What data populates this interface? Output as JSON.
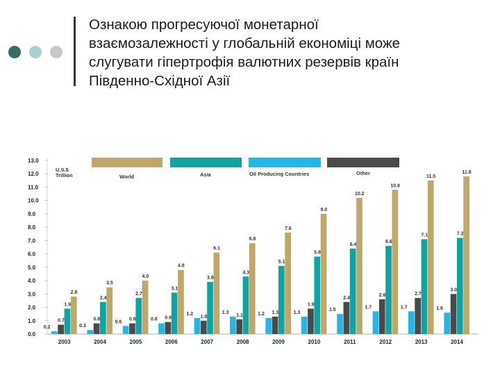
{
  "colors": {
    "dot_dark": "#3b6b67",
    "dot_light": "#a9cfd0",
    "dot_gray": "#c8c8c8",
    "world": "#bfa76c",
    "asia": "#10a3a2",
    "oil": "#27b6e3",
    "other": "#4a4a4d"
  },
  "slide": {
    "title_lines": [
      "Ознакою прогресуючої монетарної",
      "взаємозалежності у глобальній економіці може",
      "слугувати гіпертрофія валютних резервів країн",
      "Південно-Східної Азії"
    ]
  },
  "chart_data": {
    "type": "bar",
    "unit_label": [
      "U.S.$",
      "Trillion"
    ],
    "categories": [
      "2003",
      "2004",
      "2005",
      "2006",
      "2007",
      "2008",
      "2009",
      "2010",
      "2011",
      "2012",
      "2013",
      "2014"
    ],
    "series": [
      {
        "name": "Oil Producing Countries",
        "values": [
          0.2,
          0.3,
          0.6,
          0.8,
          1.2,
          1.3,
          1.2,
          1.3,
          1.5,
          1.7,
          1.7,
          1.6
        ]
      },
      {
        "name": "Other",
        "values": [
          0.7,
          0.8,
          0.8,
          0.9,
          1.0,
          1.1,
          1.3,
          1.9,
          2.4,
          2.6,
          2.7,
          3.0
        ]
      },
      {
        "name": "Asia",
        "values": [
          1.9,
          2.4,
          2.7,
          3.1,
          3.9,
          4.3,
          5.1,
          5.8,
          6.4,
          6.6,
          7.1,
          7.2
        ]
      },
      {
        "name": "World",
        "values": [
          2.8,
          3.5,
          4.0,
          4.8,
          6.1,
          6.8,
          7.6,
          9.0,
          10.2,
          10.8,
          11.5,
          11.8
        ]
      }
    ],
    "data_labels": [
      [
        "0.2",
        "0.3",
        "0.6",
        "0.8",
        "1.2",
        "1.3",
        "1.2",
        "1.3",
        "1.5",
        "1.7",
        "1.7",
        "1.6"
      ],
      [
        "0.7",
        "0.8",
        "0.8",
        "0.9",
        "1.0",
        "1.1",
        "1.3",
        "1.9",
        "2.4",
        "2.6",
        "2.7",
        "3.0"
      ],
      [
        "1.9",
        "2.4",
        "2.7",
        "3.1",
        "3.9",
        "4.3",
        "5.1",
        "5.8",
        "6.4",
        "6.6",
        "7.1",
        "7.2"
      ],
      [
        "2.8",
        "3.5",
        "4.0",
        "4.8",
        "6.1",
        "6.8",
        "7.6",
        "9.0",
        "10.2",
        "10.8",
        "11.5",
        "11.8"
      ]
    ],
    "y_ticks": [
      "0.0",
      "1.0",
      "2.0",
      "3.0",
      "4.0",
      "5.0",
      "6.0",
      "7.0",
      "8.0",
      "9.0",
      "10.0",
      "11.0",
      "12.0",
      "13.0"
    ],
    "ylim": [
      0,
      13
    ],
    "legend": [
      "World",
      "Asia",
      "Oil Producing Countries",
      "Other"
    ],
    "legend_placement": "top"
  }
}
